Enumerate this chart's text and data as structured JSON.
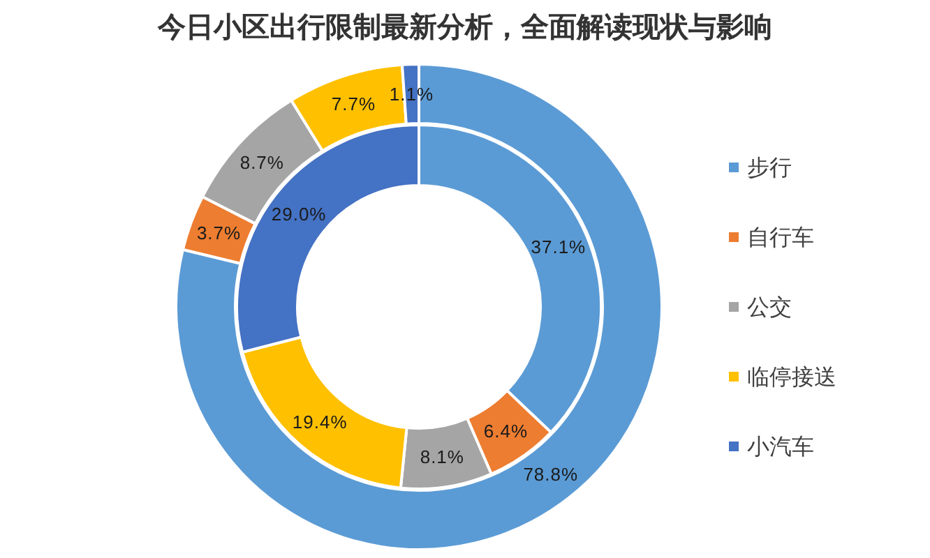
{
  "chart_data": {
    "type": "donut",
    "title": "今日小区出行限制最新分析，全面解读现状与影响",
    "categories": [
      "步行",
      "自行车",
      "公交",
      "临停接送",
      "小汽车"
    ],
    "colors": [
      "#5b9bd5",
      "#ed7d31",
      "#a5a5a5",
      "#ffc000",
      "#4472c4"
    ],
    "series": [
      {
        "values": [
          78.8,
          3.7,
          8.7,
          7.7,
          1.1
        ],
        "value_labels": [
          "78.8%",
          "3.7%",
          "8.7%",
          "7.7%",
          "1.1%"
        ]
      },
      {
        "values": [
          37.1,
          6.4,
          8.1,
          19.4,
          29.0
        ],
        "value_labels": [
          "37.1%",
          "6.4%",
          "8.1%",
          "19.4%",
          "29.0%"
        ]
      }
    ],
    "legend": "right"
  }
}
